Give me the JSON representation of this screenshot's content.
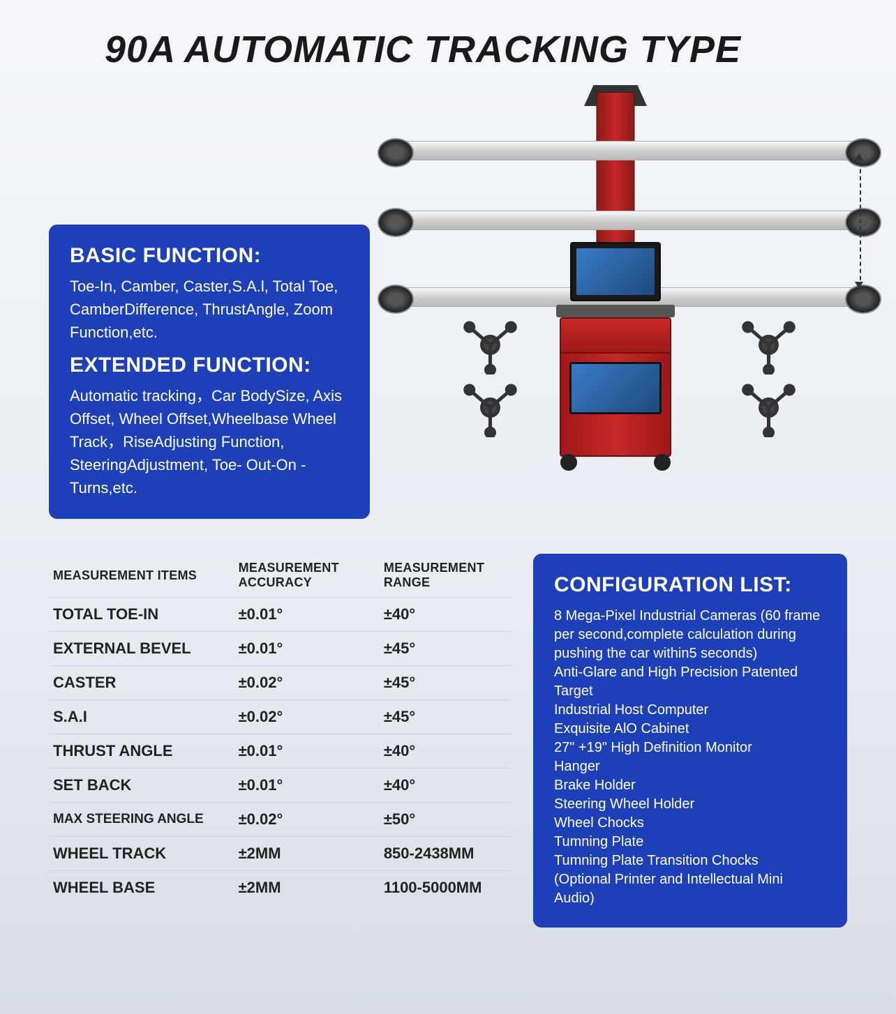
{
  "title": "90A AUTOMATIC TRACKING TYPE",
  "basic": {
    "heading": "BASIC FUNCTION:",
    "text": "Toe-In, Camber, Caster,S.A.l, Total Toe, CamberDifference, ThrustAngle, Zoom Function,etc."
  },
  "extended": {
    "heading": "EXTENDED FUNCTION:",
    "text": "Automatic tracking，Car BodySize, Axis Offset, Wheel Offset,Wheelbase Wheel Track，RiseAdjusting Function, SteeringAdjustment, Toe- Out-On -Turns,etc."
  },
  "table": {
    "headers": [
      "MEASUREMENT ITEMS",
      "MEASUREMENT ACCURACY",
      "MEASUREMENT RANGE"
    ],
    "rows": [
      {
        "item": "TOTAL TOE-IN",
        "accuracy": "±0.01°",
        "range": "±40°"
      },
      {
        "item": "EXTERNAL BEVEL",
        "accuracy": "±0.01°",
        "range": "±45°"
      },
      {
        "item": "CASTER",
        "accuracy": "±0.02°",
        "range": "±45°"
      },
      {
        "item": "S.A.I",
        "accuracy": "±0.02°",
        "range": "±45°"
      },
      {
        "item": "THRUST ANGLE",
        "accuracy": "±0.01°",
        "range": "±40°"
      },
      {
        "item": "SET BACK",
        "accuracy": "±0.01°",
        "range": "±40°"
      },
      {
        "item": "MAX STEERING ANGLE",
        "accuracy": "±0.02°",
        "range": "±50°",
        "small": true
      },
      {
        "item": "WHEEL TRACK",
        "accuracy": "±2MM",
        "range": "850-2438MM"
      },
      {
        "item": "WHEEL BASE",
        "accuracy": "±2MM",
        "range": "1100-5000MM"
      }
    ]
  },
  "config": {
    "heading": "CONFIGURATION LIST:",
    "text": "8 Mega-Pixel Industrial Cameras (60 frame per second,complete calculation during pushing the car within5 seconds)\nAnti-Glare and High Precision Patented Target\nIndustrial Host Computer\nExquisite AlO Cabinet\n27\" +19\" High Definition Monitor\nHanger\nBrake Holder\nSteering Wheel Holder\nWheel Chocks\nTumning Plate\nTumning Plate Transition Chocks\n(Optional Printer and Intellectual Mini Audio)"
  },
  "colors": {
    "blue_box": "#1d3fb8",
    "text_white": "#ffffff",
    "title_color": "#1a1a1a",
    "machine_red": "#c62828",
    "screen_blue": "#1e4a7a"
  }
}
